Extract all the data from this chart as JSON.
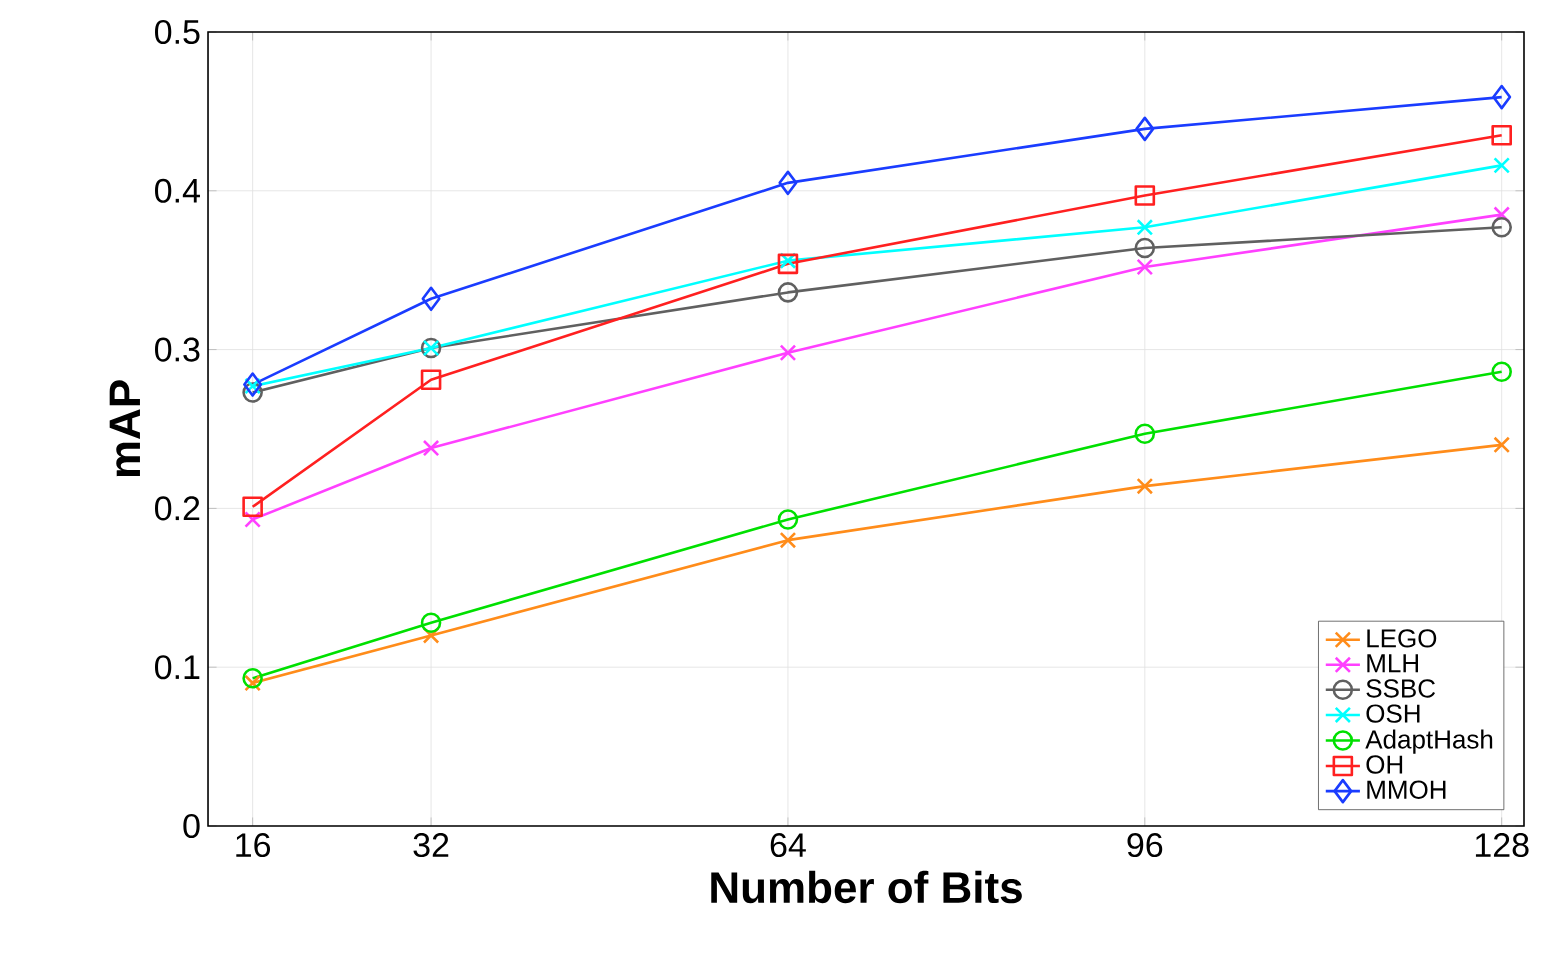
{
  "chart_data": {
    "type": "line",
    "xlabel": "Number of Bits",
    "ylabel": "mAP",
    "x": [
      16,
      32,
      64,
      96,
      128
    ],
    "xlim": [
      12,
      130
    ],
    "xticks": [
      16,
      32,
      64,
      96,
      128
    ],
    "ylim": [
      0,
      0.5
    ],
    "yticks": [
      0,
      0.1,
      0.2,
      0.3,
      0.4,
      0.5
    ],
    "grid": true,
    "legend": "bottom right",
    "series": [
      {
        "name": "LEGO",
        "color": "#ff8c1a",
        "marker": "cross",
        "values": [
          0.09,
          0.12,
          0.18,
          0.214,
          0.24
        ]
      },
      {
        "name": "MLH",
        "color": "#ff40ff",
        "marker": "cross",
        "values": [
          0.193,
          0.238,
          0.298,
          0.352,
          0.385
        ]
      },
      {
        "name": "SSBC",
        "color": "#606060",
        "marker": "circle",
        "values": [
          0.273,
          0.301,
          0.336,
          0.364,
          0.377
        ]
      },
      {
        "name": "OSH",
        "color": "#00ffff",
        "marker": "cross",
        "values": [
          0.277,
          0.301,
          0.356,
          0.377,
          0.416
        ]
      },
      {
        "name": "AdaptHash",
        "color": "#00e000",
        "marker": "circle",
        "values": [
          0.093,
          0.128,
          0.193,
          0.247,
          0.286
        ]
      },
      {
        "name": "OH",
        "color": "#ff2020",
        "marker": "square",
        "values": [
          0.201,
          0.281,
          0.354,
          0.397,
          0.435
        ]
      },
      {
        "name": "MMOH",
        "color": "#1a3cff",
        "marker": "diamond",
        "values": [
          0.278,
          0.332,
          0.405,
          0.439,
          0.459
        ]
      }
    ]
  }
}
